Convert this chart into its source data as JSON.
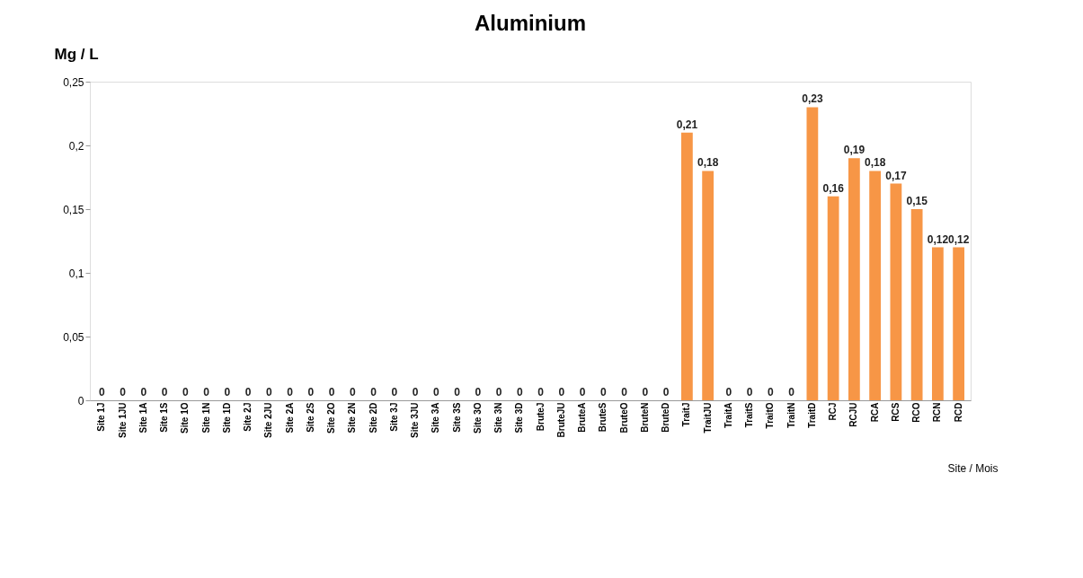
{
  "chart_data": {
    "type": "bar",
    "title": "Aluminium",
    "ylabel": "Mg / L",
    "xlabel": "Site / Mois",
    "categories": [
      "Site 1J",
      "Site 1JU",
      "Site 1A",
      "Site 1S",
      "Site 1O",
      "Site 1N",
      "Site 1D",
      "Site 2J",
      "Site 2JU",
      "Site 2A",
      "Site 2S",
      "Site 2O",
      "Site 2N",
      "Site 2D",
      "Site 3J",
      "Site 3JU",
      "Site 3A",
      "Site 3S",
      "Site 3O",
      "Site 3N",
      "Site 3D",
      "BruteJ",
      "BruteJU",
      "BruteA",
      "BruteS",
      "BruteO",
      "BruteN",
      "BruteD",
      "TraitJ",
      "TraitJU",
      "TraitA",
      "TraitS",
      "TraitO",
      "TraitN",
      "TraitD",
      "RCJ",
      "RCJU",
      "RCA",
      "RCS",
      "RCO",
      "RCN",
      "RCD"
    ],
    "series": [
      {
        "color": "#f79646",
        "values": [
          0,
          0,
          0,
          0,
          0,
          0,
          0,
          0,
          0,
          0,
          0,
          0,
          0,
          0,
          0,
          0,
          0,
          0,
          0,
          0,
          0,
          0,
          0,
          0,
          0,
          0,
          0,
          0,
          0.21,
          0.18,
          0,
          0,
          0,
          0,
          0.23,
          0.16,
          0.19,
          0.18,
          0.17,
          0.15,
          0.12,
          0.12
        ],
        "value_labels": [
          "0",
          "0",
          "0",
          "0",
          "0",
          "0",
          "0",
          "0",
          "0",
          "0",
          "0",
          "0",
          "0",
          "0",
          "0",
          "0",
          "0",
          "0",
          "0",
          "0",
          "0",
          "0",
          "0",
          "0",
          "0",
          "0",
          "0",
          "0",
          "0,21",
          "0,18",
          "0",
          "0",
          "0",
          "0",
          "0,23",
          "0,16",
          "0,19",
          "0,18",
          "0,17",
          "0,15",
          "0,12",
          "0,12"
        ]
      }
    ],
    "ylim": [
      0,
      0.25
    ],
    "yticks": [
      0,
      {
        "value": 0.05,
        "label": "0,05"
      },
      {
        "value": 0.1,
        "label": "0,1"
      },
      {
        "value": 0.15,
        "label": "0,15"
      },
      {
        "value": 0.2,
        "label": "0,2"
      },
      {
        "value": 0.25,
        "label": "0,25"
      }
    ],
    "grid": false
  }
}
